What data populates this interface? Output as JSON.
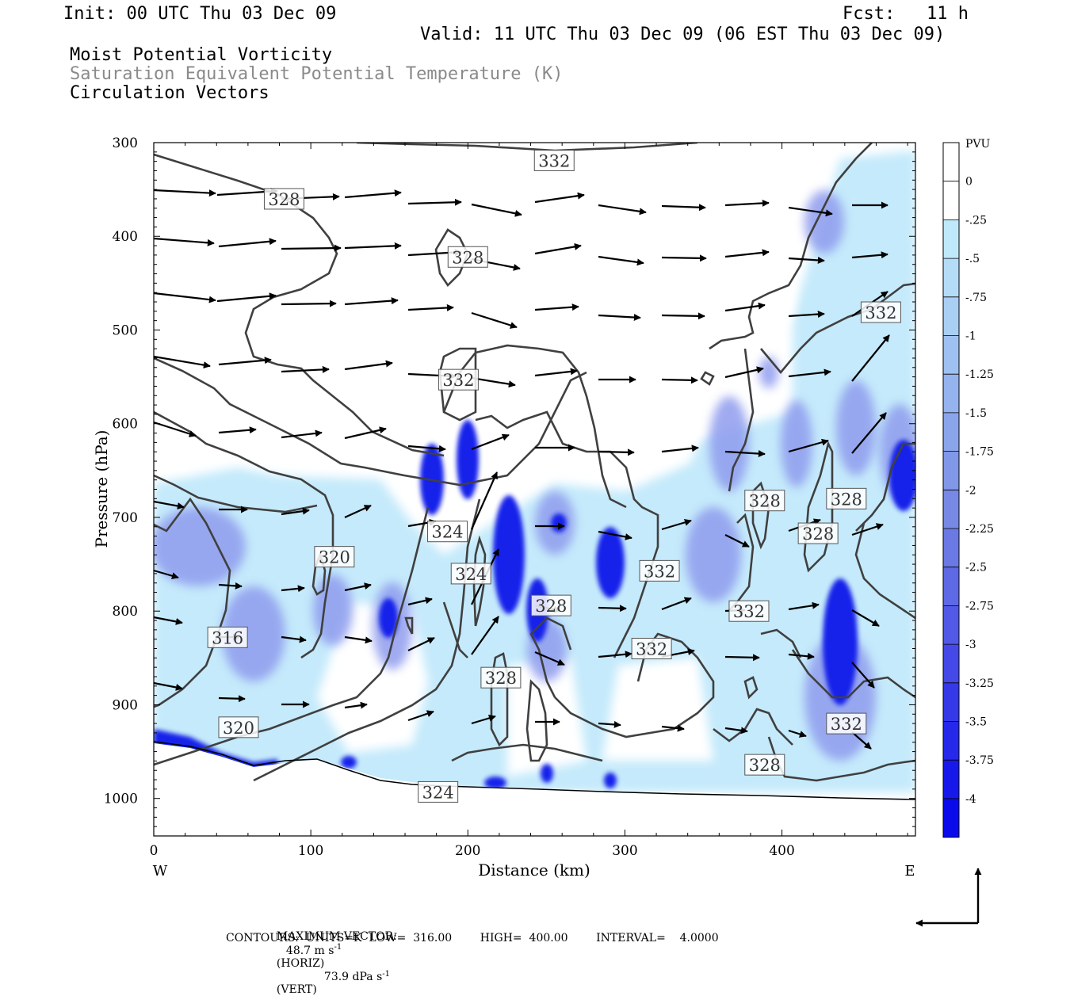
{
  "header": {
    "init": "Init: 00 UTC Thu 03 Dec 09",
    "fcst": "Fcst:   11 h",
    "valid": "Valid: 11 UTC Thu 03 Dec 09 (06 EST Thu 03 Dec 09)",
    "field1": "Moist Potential Vorticity",
    "field2": "Saturation Equivalent Potential Temperature (K)",
    "field3": "Circulation Vectors"
  },
  "footer": {
    "max_vector_label": "MAXIMUM VECTOR:",
    "horiz_value": "48.7 m s",
    "horiz_sup": "-1",
    "horiz_unit": "(HORIZ)",
    "vert_value": "73.9 dPa s",
    "vert_sup": "-1",
    "vert_unit": "(VERT)",
    "contours": "CONTOURS:  UNITS=K  LOW=  316.00        HIGH=  400.00        INTERVAL=    4.0000"
  },
  "colors": {
    "contour": "#404040",
    "pv_light": "#c8ecfa",
    "pv_mid": "#9aa6ee",
    "pv_dark": "#0a14e8"
  },
  "chart_data": {
    "type": "heatmap",
    "xlabel": "Distance (km)",
    "ylabel": "Pressure (hPa)",
    "xlim": [
      0,
      485
    ],
    "ylim": [
      1040,
      300
    ],
    "x_ticks": [
      0,
      100,
      200,
      300,
      400
    ],
    "y_ticks": [
      300,
      400,
      500,
      600,
      700,
      800,
      900,
      1000
    ],
    "x_end_labels": {
      "left": "W",
      "right": "E"
    },
    "colorbar": {
      "unit": "PVU",
      "labels": [
        "0",
        "-.25",
        "-.5",
        "-.75",
        "-1",
        "-1.25",
        "-1.5",
        "-1.75",
        "-2",
        "-2.25",
        "-2.5",
        "-2.75",
        "-3",
        "-3.25",
        "-3.5",
        "-3.75",
        "-4"
      ],
      "colors": [
        "#ffffff",
        "#ffffff",
        "#bfe9fb",
        "#b4dcf7",
        "#a9cff4",
        "#9fc1f1",
        "#95b3ee",
        "#8ba5eb",
        "#8197e8",
        "#7789e5",
        "#6b79e4",
        "#5e69e5",
        "#5159e6",
        "#4449e7",
        "#3539e8",
        "#2629e9",
        "#1719ea",
        "#0a0aeb"
      ]
    },
    "contour_labels": [
      {
        "x": 255,
        "p": 319,
        "text": "332"
      },
      {
        "x": 83,
        "p": 360,
        "text": "328"
      },
      {
        "x": 200,
        "p": 422,
        "text": "328"
      },
      {
        "x": 463,
        "p": 481,
        "text": "332"
      },
      {
        "x": 194,
        "p": 553,
        "text": "332"
      },
      {
        "x": 389,
        "p": 682,
        "text": "328"
      },
      {
        "x": 441,
        "p": 680,
        "text": "328"
      },
      {
        "x": 423,
        "p": 717,
        "text": "328"
      },
      {
        "x": 187,
        "p": 715,
        "text": "324"
      },
      {
        "x": 115,
        "p": 742,
        "text": "320"
      },
      {
        "x": 202,
        "p": 760,
        "text": "324"
      },
      {
        "x": 322,
        "p": 757,
        "text": "332"
      },
      {
        "x": 253,
        "p": 794,
        "text": "328"
      },
      {
        "x": 379,
        "p": 800,
        "text": "332"
      },
      {
        "x": 47,
        "p": 828,
        "text": "316"
      },
      {
        "x": 317,
        "p": 840,
        "text": "332"
      },
      {
        "x": 221,
        "p": 871,
        "text": "328"
      },
      {
        "x": 54,
        "p": 924,
        "text": "320"
      },
      {
        "x": 441,
        "p": 920,
        "text": "332"
      },
      {
        "x": 389,
        "p": 964,
        "text": "328"
      },
      {
        "x": 181,
        "p": 993,
        "text": "324"
      }
    ]
  }
}
